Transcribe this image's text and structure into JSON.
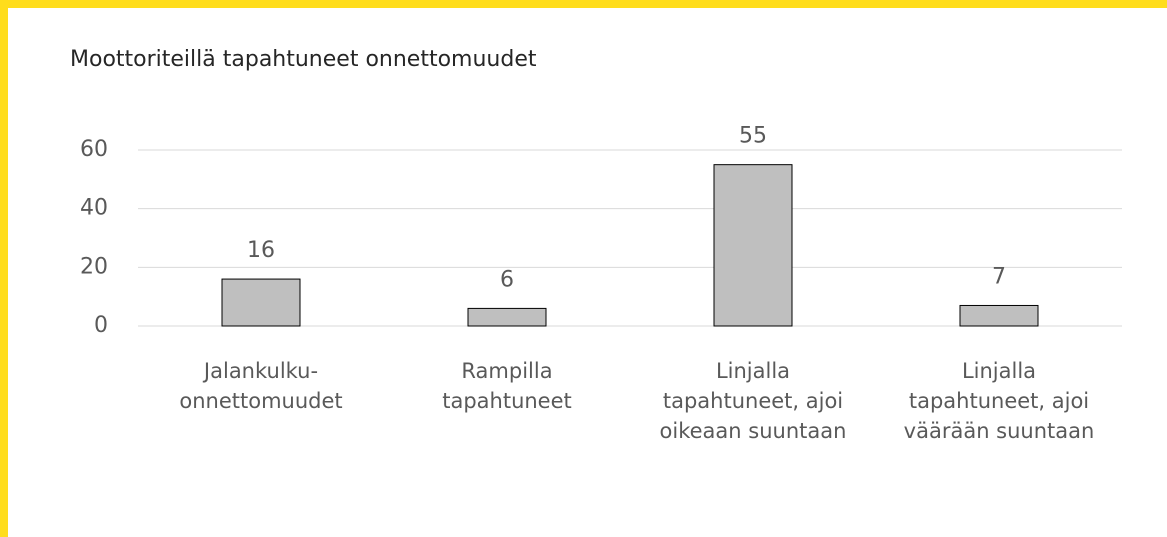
{
  "chart_data": {
    "type": "bar",
    "title": "Moottoriteillä tapahtuneet onnettomuudet",
    "categories": [
      "Jalankulku-onnettomuudet",
      "Rampilla tapahtuneet",
      "Linjalla tapahtuneet, ajoi oikeaan suuntaan",
      "Linjalla tapahtuneet, ajoi väärään suuntaan"
    ],
    "values": [
      16,
      6,
      55,
      7
    ],
    "color": "#bfbfbf",
    "ylim": [
      0,
      60
    ],
    "yticks": [
      0,
      20,
      40,
      60
    ],
    "grid": true
  }
}
